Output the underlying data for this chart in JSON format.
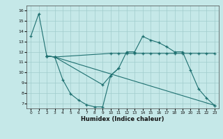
{
  "xlabel": "Humidex (Indice chaleur)",
  "bg_color": "#c5e8e8",
  "grid_color": "#a0cccc",
  "line_color": "#1e7070",
  "xlim": [
    -0.5,
    23.5
  ],
  "ylim": [
    6.5,
    16.5
  ],
  "yticks": [
    7,
    8,
    9,
    10,
    11,
    12,
    13,
    14,
    15,
    16
  ],
  "xticks": [
    0,
    1,
    2,
    3,
    4,
    5,
    6,
    7,
    8,
    9,
    10,
    11,
    12,
    13,
    14,
    15,
    16,
    17,
    18,
    19,
    20,
    21,
    22,
    23
  ],
  "lines": [
    {
      "x": [
        0,
        1,
        2,
        3,
        4,
        5,
        6,
        7,
        8,
        9,
        10,
        11
      ],
      "y": [
        13.5,
        15.7,
        11.6,
        11.5,
        9.3,
        7.9,
        7.3,
        6.85,
        6.65,
        6.65,
        9.7,
        10.4
      ]
    },
    {
      "x": [
        2,
        3,
        10,
        11,
        12,
        13,
        14,
        15,
        16,
        17,
        18,
        19,
        20,
        21,
        22,
        23
      ],
      "y": [
        11.6,
        11.5,
        11.85,
        11.85,
        11.85,
        11.85,
        11.85,
        11.85,
        11.85,
        11.85,
        11.85,
        11.85,
        11.85,
        11.85,
        11.85,
        11.85
      ]
    },
    {
      "x": [
        2,
        3,
        9,
        10,
        11,
        12,
        13,
        14,
        15,
        16,
        17,
        18,
        19,
        20,
        21,
        22,
        23
      ],
      "y": [
        11.6,
        11.5,
        8.8,
        9.7,
        10.4,
        12.0,
        12.0,
        13.5,
        13.15,
        12.9,
        12.5,
        12.0,
        12.0,
        10.2,
        8.4,
        7.5,
        6.8
      ]
    },
    {
      "x": [
        2,
        3,
        23
      ],
      "y": [
        11.6,
        11.5,
        6.8
      ]
    }
  ]
}
